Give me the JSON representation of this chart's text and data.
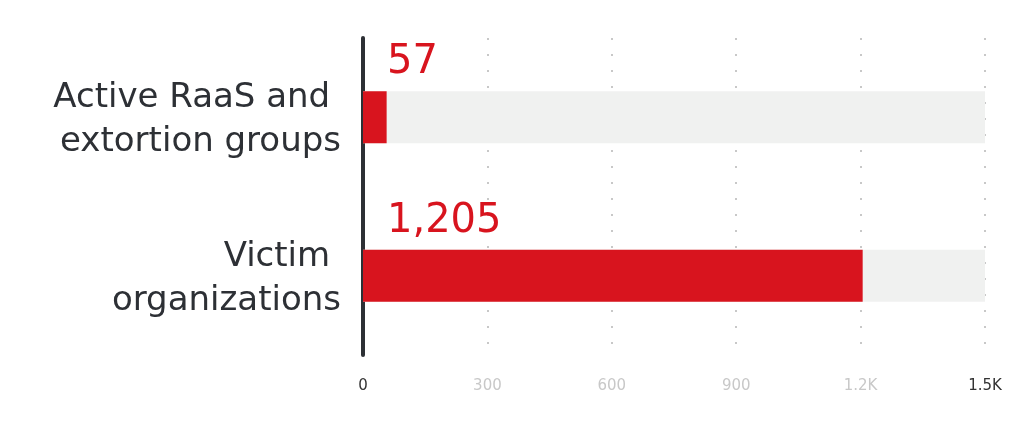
{
  "chart_data": {
    "type": "bar",
    "orientation": "horizontal",
    "categories": [
      "Active RaaS and extortion groups",
      "Victim organizations"
    ],
    "values": [
      57,
      1205
    ],
    "color": "#d8141e",
    "value_labels": [
      "57",
      "1,205"
    ],
    "xlim": [
      0,
      1500
    ],
    "xticks": [
      0,
      300,
      600,
      900,
      {
        "value": 1200,
        "label": "1.2K"
      },
      {
        "value": 1500,
        "label": "1.5K"
      }
    ],
    "grid": "x"
  }
}
